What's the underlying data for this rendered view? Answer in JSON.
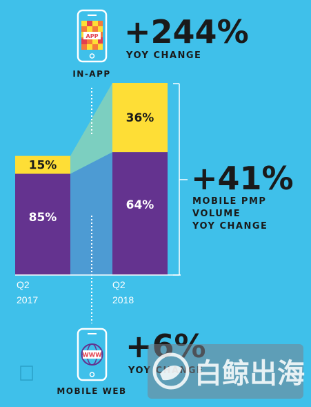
{
  "chart_data": {
    "type": "bar",
    "stacked": true,
    "normalized": true,
    "categories": [
      "Q2\n2017",
      "Q2\n2018"
    ],
    "category_lines": [
      [
        "Q2",
        "2017"
      ],
      [
        "Q2",
        "2018"
      ]
    ],
    "series": [
      {
        "key": "mobile_web",
        "values": [
          85,
          64
        ],
        "labels": [
          "85%",
          "64%"
        ]
      },
      {
        "key": "in_app",
        "values": [
          15,
          36
        ],
        "labels": [
          "15%",
          "36%"
        ]
      }
    ],
    "ylim": [
      0,
      100
    ],
    "annotations": {
      "in_app": {
        "label": "IN-APP",
        "change": "+244%",
        "caption": "YOY CHANGE"
      },
      "total": {
        "change": "+41%",
        "caption_lines": [
          "MOBILE PMP",
          "VOLUME",
          "YOY CHANGE"
        ]
      },
      "mobile_web": {
        "label": "MOBILE WEB",
        "change": "+6%",
        "caption": "YOY CHANGE"
      }
    }
  },
  "icons": {
    "in_app_phone": "phone-app-icon",
    "app_badge_text": "APP",
    "mobile_web_phone": "phone-www-icon",
    "www_badge_text": "WWW"
  },
  "watermark": {
    "text": "白鲸出海",
    "icon": "whale-logo-icon"
  },
  "colors": {
    "background": "#3fc0ea",
    "mobile_web": "#64338f",
    "in_app": "#fede36",
    "web_connector": "#4d9bd3",
    "app_connector": "#7ccfc0",
    "label_on_web": "#ffffff",
    "label_on_app": "#1a1a1a"
  }
}
